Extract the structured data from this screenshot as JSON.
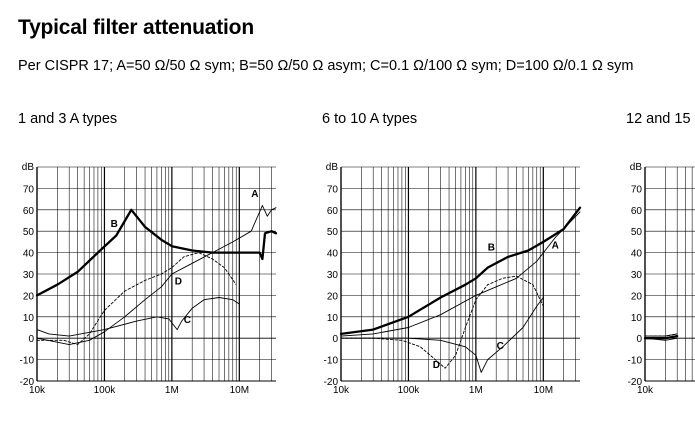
{
  "header": {
    "title": "Typical filter attenuation",
    "subtitle": "Per CISPR 17; A=50 Ω/50 Ω sym; B=50 Ω/50 Ω asym; C=0.1 Ω/100 Ω sym; D=100 Ω/0.1 Ω sym"
  },
  "panels": [
    {
      "title": "1 and 3 A types"
    },
    {
      "title": "6 to 10 A types"
    },
    {
      "title": "12 and 15"
    }
  ],
  "chart_data": [
    {
      "type": "line",
      "title": "1 and 3 A types",
      "ylabel": "dB",
      "x_scale": "log",
      "xlim": [
        10000,
        35000000
      ],
      "ylim": [
        -20,
        80
      ],
      "x_ticks": [
        {
          "v": 10000,
          "label": "10k"
        },
        {
          "v": 100000,
          "label": "100k"
        },
        {
          "v": 1000000,
          "label": "1M"
        },
        {
          "v": 10000000,
          "label": "10M"
        }
      ],
      "y_ticks": [
        -20,
        -10,
        0,
        10,
        20,
        30,
        40,
        50,
        60,
        70
      ],
      "series": [
        {
          "name": "A",
          "style": "thin",
          "points": [
            [
              10000,
              0
            ],
            [
              30000,
              -3
            ],
            [
              60000,
              -1
            ],
            [
              100000,
              3
            ],
            [
              200000,
              10
            ],
            [
              400000,
              18
            ],
            [
              700000,
              24
            ],
            [
              1000000,
              30
            ],
            [
              2000000,
              35
            ],
            [
              4000000,
              40
            ],
            [
              8000000,
              45
            ],
            [
              15000000,
              50
            ],
            [
              22000000,
              62
            ],
            [
              26000000,
              57
            ],
            [
              30000000,
              60
            ],
            [
              35000000,
              61
            ]
          ]
        },
        {
          "name": "B",
          "style": "bold",
          "points": [
            [
              10000,
              20
            ],
            [
              20000,
              25
            ],
            [
              40000,
              31
            ],
            [
              80000,
              40
            ],
            [
              150000,
              48
            ],
            [
              250000,
              60
            ],
            [
              400000,
              52
            ],
            [
              700000,
              46
            ],
            [
              1000000,
              43
            ],
            [
              2000000,
              41
            ],
            [
              4000000,
              40
            ],
            [
              10000000,
              40
            ],
            [
              20000000,
              40
            ],
            [
              22000000,
              37
            ],
            [
              24000000,
              49
            ],
            [
              30000000,
              50
            ],
            [
              35000000,
              49
            ]
          ]
        },
        {
          "name": "C",
          "style": "thin",
          "points": [
            [
              10000,
              4
            ],
            [
              15000,
              2
            ],
            [
              30000,
              1
            ],
            [
              100000,
              4
            ],
            [
              300000,
              8
            ],
            [
              600000,
              10
            ],
            [
              900000,
              9
            ],
            [
              1200000,
              4
            ],
            [
              1400000,
              8
            ],
            [
              2000000,
              14
            ],
            [
              3000000,
              18
            ],
            [
              5000000,
              19
            ],
            [
              8000000,
              18
            ],
            [
              10000000,
              16
            ]
          ]
        },
        {
          "name": "D",
          "style": "dashed",
          "points": [
            [
              10000,
              -1
            ],
            [
              25000,
              -1
            ],
            [
              40000,
              -3
            ],
            [
              60000,
              2
            ],
            [
              100000,
              13
            ],
            [
              200000,
              22
            ],
            [
              400000,
              27
            ],
            [
              700000,
              30
            ],
            [
              1000000,
              33
            ],
            [
              1500000,
              38
            ],
            [
              2500000,
              40
            ],
            [
              4000000,
              37
            ],
            [
              6000000,
              33
            ],
            [
              9000000,
              25
            ]
          ]
        }
      ],
      "annotations": [
        {
          "text": "A",
          "x": 17000000,
          "y": 66
        },
        {
          "text": "B",
          "x": 140000,
          "y": 52
        },
        {
          "text": "C",
          "x": 1700000,
          "y": 7
        },
        {
          "text": "D",
          "x": 1250000,
          "y": 25
        }
      ]
    },
    {
      "type": "line",
      "title": "6 to 10 A types",
      "ylabel": "dB",
      "x_scale": "log",
      "xlim": [
        10000,
        35000000
      ],
      "ylim": [
        -20,
        80
      ],
      "x_ticks": [
        {
          "v": 10000,
          "label": "10k"
        },
        {
          "v": 100000,
          "label": "100k"
        },
        {
          "v": 1000000,
          "label": "1M"
        },
        {
          "v": 10000000,
          "label": "10M"
        }
      ],
      "y_ticks": [
        -20,
        -10,
        0,
        10,
        20,
        30,
        40,
        50,
        60,
        70
      ],
      "series": [
        {
          "name": "A",
          "style": "thin",
          "points": [
            [
              10000,
              1
            ],
            [
              30000,
              2
            ],
            [
              100000,
              5
            ],
            [
              300000,
              11
            ],
            [
              1000000,
              20
            ],
            [
              2000000,
              24
            ],
            [
              4000000,
              28
            ],
            [
              8000000,
              36
            ],
            [
              15000000,
              47
            ],
            [
              35000000,
              59
            ]
          ]
        },
        {
          "name": "B",
          "style": "bold",
          "points": [
            [
              10000,
              2
            ],
            [
              30000,
              4
            ],
            [
              100000,
              10
            ],
            [
              300000,
              19
            ],
            [
              700000,
              25
            ],
            [
              1000000,
              28
            ],
            [
              1500000,
              33
            ],
            [
              3000000,
              38
            ],
            [
              6000000,
              41
            ],
            [
              10000000,
              45
            ],
            [
              20000000,
              51
            ],
            [
              35000000,
              61
            ]
          ]
        },
        {
          "name": "C",
          "style": "thin",
          "points": [
            [
              10000,
              0
            ],
            [
              100000,
              0
            ],
            [
              300000,
              -1
            ],
            [
              700000,
              -4
            ],
            [
              1000000,
              -8
            ],
            [
              1200000,
              -16
            ],
            [
              1500000,
              -10
            ],
            [
              2500000,
              -4
            ],
            [
              5000000,
              5
            ],
            [
              8000000,
              15
            ],
            [
              10000000,
              19
            ]
          ]
        },
        {
          "name": "D",
          "style": "dashed",
          "points": [
            [
              10000,
              0
            ],
            [
              30000,
              0
            ],
            [
              80000,
              -1
            ],
            [
              150000,
              -4
            ],
            [
              250000,
              -10
            ],
            [
              350000,
              -14
            ],
            [
              500000,
              -8
            ],
            [
              700000,
              5
            ],
            [
              1000000,
              18
            ],
            [
              1500000,
              25
            ],
            [
              2500000,
              28
            ],
            [
              4000000,
              29
            ],
            [
              7000000,
              25
            ],
            [
              10000000,
              15
            ]
          ]
        }
      ],
      "annotations": [
        {
          "text": "A",
          "x": 15000000,
          "y": 42
        },
        {
          "text": "B",
          "x": 1700000,
          "y": 41
        },
        {
          "text": "C",
          "x": 2300000,
          "y": -5
        },
        {
          "text": "D",
          "x": 260000,
          "y": -14
        }
      ]
    },
    {
      "type": "line",
      "title": "12 and 15",
      "ylabel": "dB",
      "x_scale": "log",
      "xlim": [
        10000,
        35000000
      ],
      "ylim": [
        -20,
        80
      ],
      "x_ticks": [
        {
          "v": 10000,
          "label": "10k"
        }
      ],
      "y_ticks": [
        -20,
        -10,
        0,
        10,
        20,
        30,
        40,
        50,
        60,
        70
      ],
      "series": [
        {
          "name": "A",
          "style": "thin",
          "points": [
            [
              10000,
              1
            ],
            [
              20000,
              1
            ],
            [
              30000,
              2
            ]
          ]
        },
        {
          "name": "B",
          "style": "bold",
          "points": [
            [
              10000,
              0
            ],
            [
              20000,
              0
            ],
            [
              30000,
              1
            ]
          ]
        },
        {
          "name": "C",
          "style": "thin",
          "points": [
            [
              10000,
              0
            ],
            [
              20000,
              -1
            ],
            [
              30000,
              0
            ]
          ]
        },
        {
          "name": "D",
          "style": "dashed",
          "points": [
            [
              10000,
              1
            ],
            [
              20000,
              1
            ],
            [
              30000,
              2
            ]
          ]
        }
      ],
      "annotations": []
    }
  ]
}
